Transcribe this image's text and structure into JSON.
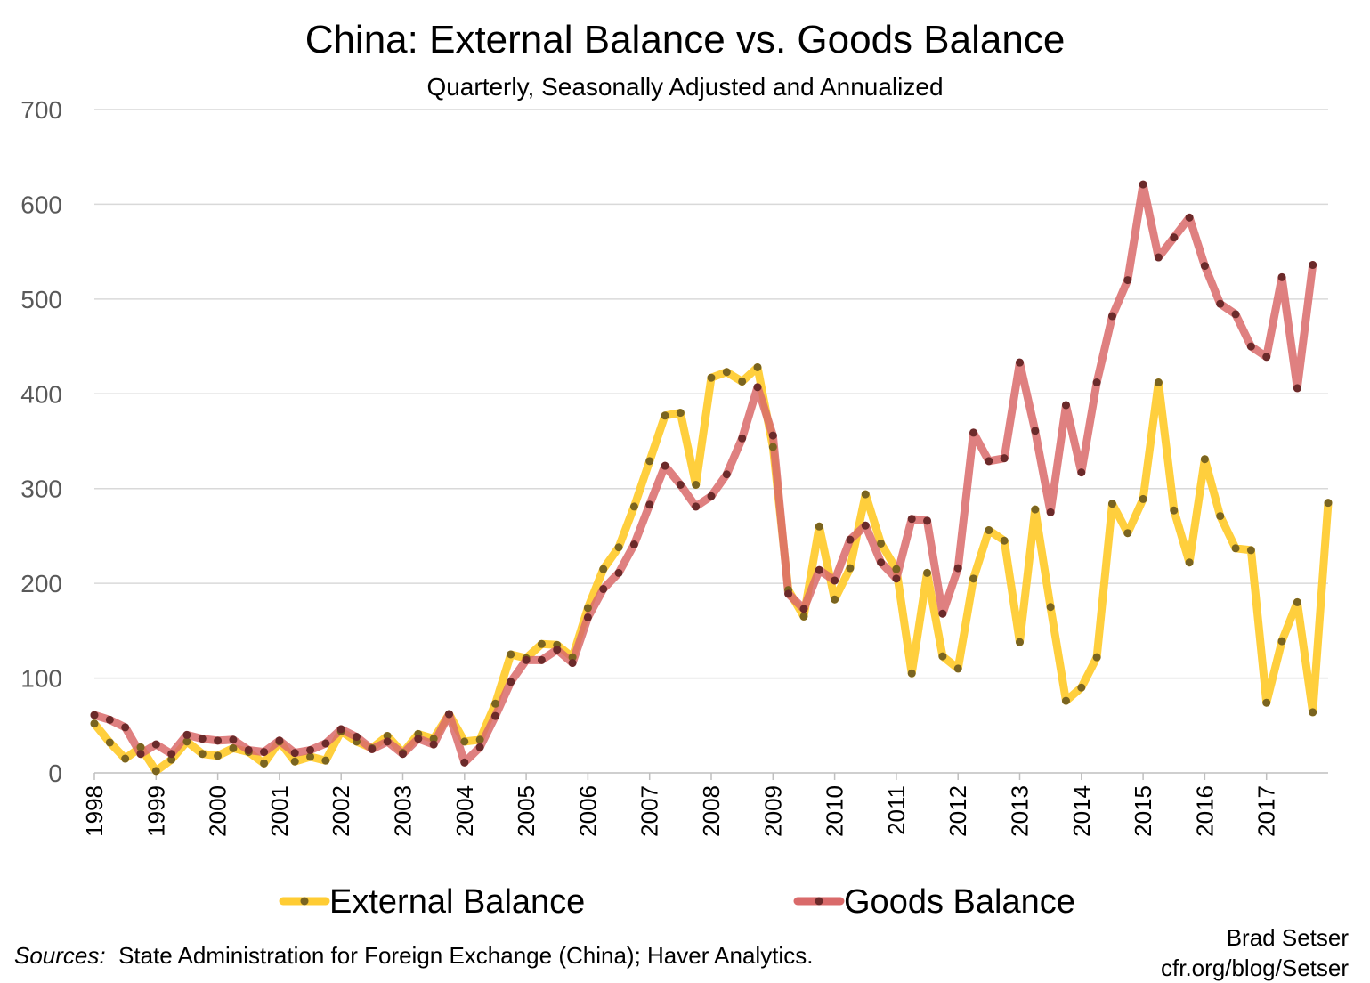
{
  "header": {
    "title": "China: External Balance vs. Goods Balance",
    "subtitle": "Quarterly, Seasonally Adjusted and Annualized"
  },
  "footer": {
    "sources_label": "Sources:",
    "sources_text": "State Administration for Foreign Exchange (China); Haver Analytics.",
    "author": "Brad Setser",
    "url": "cfr.org/blog/Setser"
  },
  "chart_data": {
    "type": "line",
    "title": "China: External Balance vs. Goods Balance",
    "subtitle": "Quarterly, Seasonally Adjusted and Annualized",
    "xlabel": "",
    "ylabel": "",
    "ylim": [
      0,
      700
    ],
    "yticks": [
      0,
      100,
      200,
      300,
      400,
      500,
      600,
      700
    ],
    "x_tick_labels": [
      "1998",
      "1999",
      "2000",
      "2001",
      "2002",
      "2003",
      "2004",
      "2005",
      "2006",
      "2007",
      "2008",
      "2009",
      "2010",
      "2011",
      "2012",
      "2013",
      "2014",
      "2015",
      "2016",
      "2017"
    ],
    "grid": true,
    "legend_position": "bottom",
    "series": [
      {
        "name": "External Balance",
        "color": "#FFCC33",
        "values": [
          52,
          32,
          15,
          27,
          2,
          14,
          33,
          20,
          18,
          26,
          22,
          10,
          33,
          12,
          17,
          13,
          44,
          33,
          26,
          39,
          21,
          41,
          36,
          62,
          33,
          35,
          73,
          125,
          121,
          136,
          135,
          122,
          174,
          215,
          238,
          281,
          329,
          377,
          380,
          304,
          417,
          423,
          413,
          428,
          344,
          193,
          165,
          260,
          183,
          216,
          294,
          242,
          215,
          105,
          211,
          123,
          110,
          205,
          256,
          245,
          138,
          278,
          175,
          76,
          90,
          122,
          284,
          253,
          289,
          412,
          277,
          222,
          331,
          271,
          237,
          235,
          74,
          139,
          180,
          64,
          285
        ]
      },
      {
        "name": "Goods Balance",
        "color": "#D96A6A",
        "values": [
          61,
          56,
          48,
          20,
          30,
          20,
          40,
          36,
          34,
          35,
          24,
          22,
          34,
          21,
          24,
          31,
          46,
          38,
          25,
          33,
          20,
          36,
          30,
          62,
          11,
          27,
          60,
          96,
          119,
          119,
          130,
          116,
          164,
          194,
          211,
          241,
          283,
          324,
          304,
          281,
          292,
          315,
          353,
          407,
          356,
          189,
          173,
          214,
          203,
          246,
          261,
          222,
          205,
          268,
          266,
          168,
          216,
          359,
          329,
          332,
          433,
          361,
          275,
          388,
          317,
          412,
          482,
          520,
          621,
          544,
          565,
          586,
          535,
          495,
          484,
          450,
          439,
          523,
          406,
          536
        ]
      }
    ]
  }
}
